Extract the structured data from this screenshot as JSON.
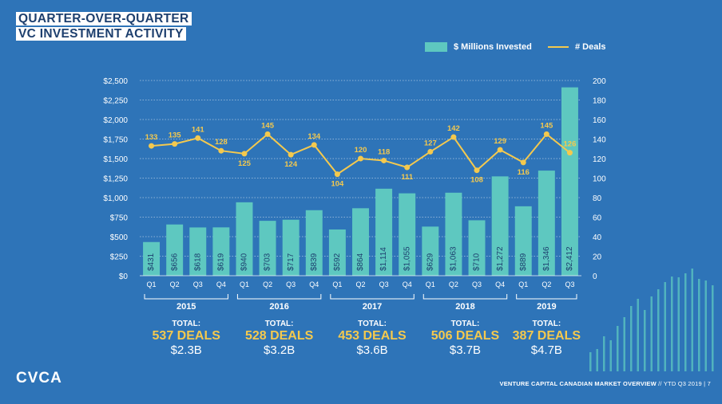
{
  "title_line1": "QUARTER-OVER-QUARTER",
  "title_line2": "VC INVESTMENT ACTIVITY",
  "logo": "CVCA",
  "footer_bold": "VENTURE CAPITAL CANADIAN MARKET OVERVIEW",
  "footer_rest": " // YTD Q3 2019  |  7",
  "colors": {
    "background": "#2e74b8",
    "bars": "#5ec8c0",
    "line": "#f4c94e",
    "title_text": "#1d3f6e",
    "total_deals": "#f4c94e"
  },
  "chart_data": {
    "type": "bar",
    "categories": [
      "Q1",
      "Q2",
      "Q3",
      "Q4",
      "Q1",
      "Q2",
      "Q3",
      "Q4",
      "Q1",
      "Q2",
      "Q3",
      "Q4",
      "Q1",
      "Q2",
      "Q3",
      "Q4",
      "Q1",
      "Q2",
      "Q3"
    ],
    "series": [
      {
        "name": "$ Millions Invested",
        "type": "bar",
        "axis": "left",
        "values": [
          431,
          656,
          618,
          619,
          940,
          703,
          717,
          839,
          592,
          864,
          1114,
          1055,
          629,
          1063,
          710,
          1272,
          889,
          1346,
          2412
        ],
        "labels": [
          "$431",
          "$656",
          "$618",
          "$619",
          "$940",
          "$703",
          "$717",
          "$839",
          "$592",
          "$864",
          "$1,114",
          "$1,055",
          "$629",
          "$1,063",
          "$710",
          "$1,272",
          "$889",
          "$1,346",
          "$2,412"
        ]
      },
      {
        "name": "# Deals",
        "type": "line",
        "axis": "right",
        "values": [
          133,
          135,
          141,
          128,
          125,
          145,
          124,
          134,
          104,
          120,
          118,
          111,
          127,
          142,
          108,
          129,
          116,
          145,
          126
        ]
      }
    ],
    "y_left": {
      "ylim": [
        0,
        2500
      ],
      "ticks": [
        "$0",
        "$250",
        "$500",
        "$750",
        "$1,000",
        "$1,250",
        "$1,500",
        "$1,750",
        "$2,000",
        "$2,250",
        "$2,500"
      ]
    },
    "y_right": {
      "ylim": [
        0,
        200
      ],
      "ticks": [
        "0",
        "20",
        "40",
        "60",
        "80",
        "100",
        "120",
        "140",
        "160",
        "180",
        "200"
      ]
    },
    "grid": "horizontal dotted",
    "legend_position": "top-right",
    "groups": [
      {
        "year": "2015",
        "total_label": "TOTAL:",
        "deals": "537 DEALS",
        "amount": "$2.3B"
      },
      {
        "year": "2016",
        "total_label": "TOTAL:",
        "deals": "528 DEALS",
        "amount": "$3.2B"
      },
      {
        "year": "2017",
        "total_label": "TOTAL:",
        "deals": "453 DEALS",
        "amount": "$3.6B"
      },
      {
        "year": "2018",
        "total_label": "TOTAL:",
        "deals": "506 DEALS",
        "amount": "$3.7B"
      },
      {
        "year": "2019",
        "total_label": "TOTAL:",
        "deals": "387 DEALS",
        "amount": "$4.7B"
      }
    ]
  }
}
